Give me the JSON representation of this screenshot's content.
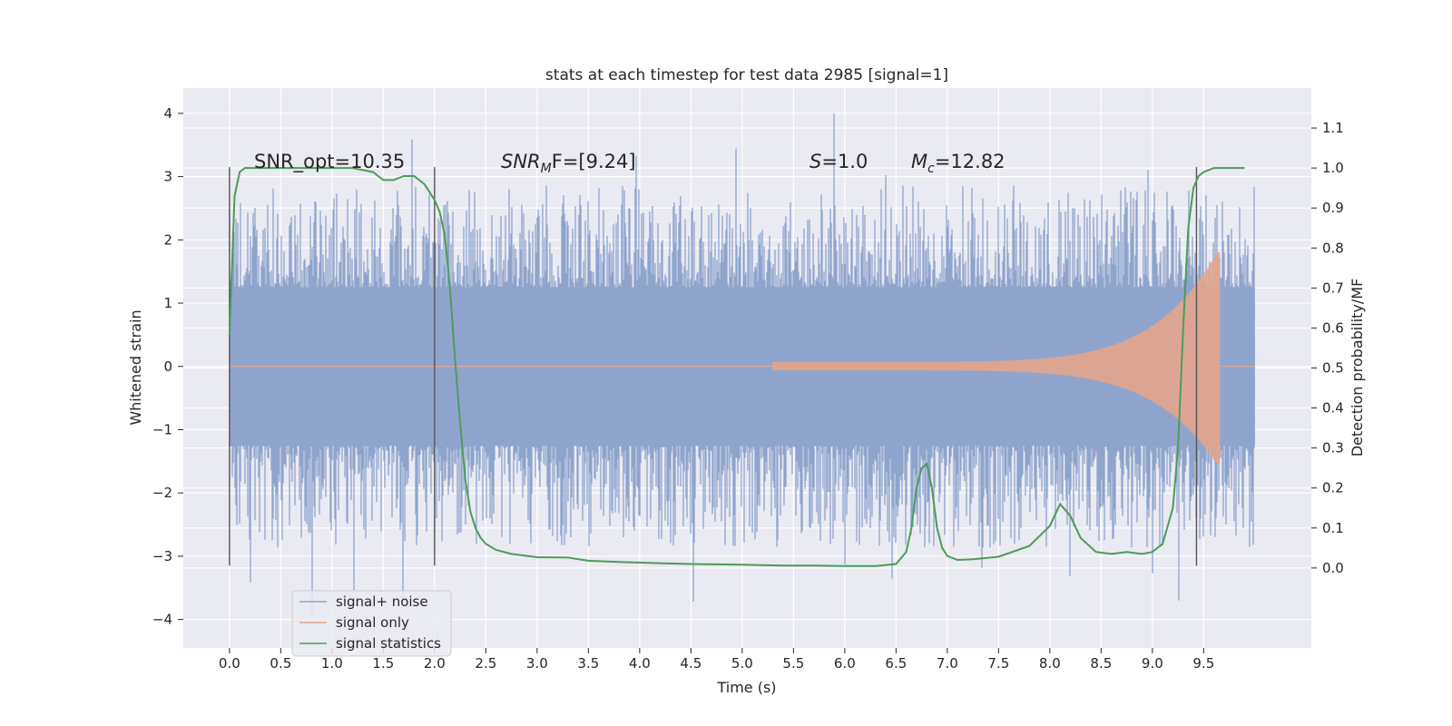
{
  "chart_data": {
    "type": "line",
    "title": "stats at each timestep for test data 2985 [signal=1]",
    "xlabel": "Time (s)",
    "ylabel_left": "Whitened strain",
    "ylabel_right": "Detection probability/MF",
    "xlim": [
      -0.45,
      10.55
    ],
    "ylim_left": [
      -4.45,
      4.4
    ],
    "ylim_right": [
      -0.2,
      1.2
    ],
    "x_ticks": [
      "0.0",
      "0.5",
      "1.0",
      "1.5",
      "2.0",
      "2.5",
      "3.0",
      "3.5",
      "4.0",
      "4.5",
      "5.0",
      "5.5",
      "6.0",
      "6.5",
      "7.0",
      "7.5",
      "8.0",
      "8.5",
      "9.0",
      "9.5"
    ],
    "y_left_ticks": [
      "4",
      "3",
      "2",
      "1",
      "0",
      "−1",
      "−2",
      "−3",
      "−4"
    ],
    "y_right_ticks": [
      "1.1",
      "1.0",
      "0.9",
      "0.8",
      "0.7",
      "0.6",
      "0.5",
      "0.4",
      "0.3",
      "0.2",
      "0.1",
      "0.0"
    ],
    "grid": true,
    "legend_position": "bottom-left",
    "annotations": {
      "snr_opt": "SNR_opt=10.35",
      "snr_mf_sym": "SNR",
      "snr_mf_sub": "M",
      "snr_mf_rest": "F=[9.24]",
      "s_sym": "S",
      "s_val": "=1.0",
      "mc_sym": "M",
      "mc_sub": "c",
      "mc_val": "=12.82"
    },
    "vertical_markers": [
      0.0,
      2.0,
      9.43
    ],
    "marker_range": [
      -3.15,
      3.15
    ],
    "series": [
      {
        "name": "signal+ noise",
        "color": "#8fa4cc",
        "envelope": {
          "x_start": 0.0,
          "x_end": 10.0,
          "dense_amplitude": 1.25,
          "typical_peak": 2.2,
          "max": 4.05,
          "min": -4.05
        }
      },
      {
        "name": "signal only",
        "color": "#e3a58c",
        "envelope": {
          "x_start": 5.3,
          "x_end": 9.66,
          "peak_positive": 1.8,
          "peak_negative": -1.55
        }
      },
      {
        "name": "signal statistics",
        "color": "#4c9c5b",
        "x": [
          0.0,
          0.05,
          0.1,
          0.15,
          0.2,
          0.3,
          0.5,
          0.8,
          1.0,
          1.2,
          1.4,
          1.5,
          1.6,
          1.7,
          1.8,
          1.9,
          2.0,
          2.05,
          2.1,
          2.15,
          2.2,
          2.25,
          2.3,
          2.35,
          2.4,
          2.45,
          2.5,
          2.6,
          2.75,
          3.0,
          3.3,
          3.5,
          3.8,
          4.2,
          4.5,
          5.0,
          5.4,
          5.7,
          6.0,
          6.3,
          6.5,
          6.6,
          6.65,
          6.7,
          6.75,
          6.8,
          6.85,
          6.9,
          6.95,
          7.0,
          7.1,
          7.25,
          7.5,
          7.8,
          8.0,
          8.1,
          8.2,
          8.3,
          8.45,
          8.6,
          8.75,
          8.9,
          9.0,
          9.1,
          9.2,
          9.25,
          9.3,
          9.35,
          9.4,
          9.45,
          9.5,
          9.55,
          9.6,
          9.7,
          9.8,
          9.9
        ],
        "values": [
          0.58,
          0.93,
          0.99,
          1.0,
          1.0,
          1.0,
          1.0,
          1.0,
          1.0,
          1.0,
          0.99,
          0.97,
          0.97,
          0.98,
          0.98,
          0.96,
          0.92,
          0.89,
          0.83,
          0.7,
          0.52,
          0.36,
          0.22,
          0.14,
          0.1,
          0.075,
          0.06,
          0.045,
          0.035,
          0.027,
          0.026,
          0.018,
          0.015,
          0.012,
          0.01,
          0.008,
          0.006,
          0.006,
          0.005,
          0.005,
          0.01,
          0.04,
          0.1,
          0.2,
          0.25,
          0.26,
          0.2,
          0.1,
          0.05,
          0.03,
          0.02,
          0.022,
          0.028,
          0.055,
          0.105,
          0.16,
          0.13,
          0.075,
          0.04,
          0.035,
          0.04,
          0.035,
          0.04,
          0.06,
          0.15,
          0.3,
          0.6,
          0.85,
          0.95,
          0.98,
          0.99,
          0.995,
          1.0,
          1.0,
          1.0,
          1.0
        ]
      }
    ]
  }
}
